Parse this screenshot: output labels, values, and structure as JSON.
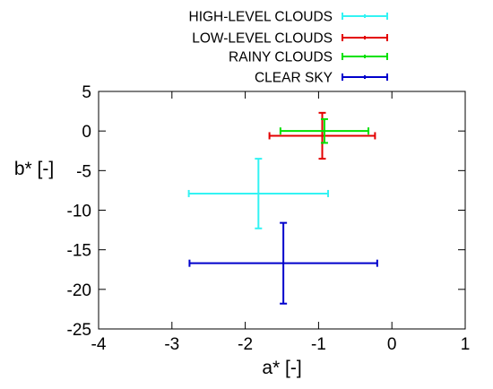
{
  "chart_data": {
    "type": "scatter",
    "title": "",
    "xlabel": "a* [-]",
    "ylabel": "b* [-]",
    "xlim": [
      -4,
      1
    ],
    "ylim": [
      -25,
      5
    ],
    "xticks": [
      -4,
      -3,
      -2,
      -1,
      0,
      1
    ],
    "yticks": [
      5,
      0,
      -5,
      -10,
      -15,
      -20,
      -25
    ],
    "grid": false,
    "legend_position": "top",
    "series": [
      {
        "name": "HIGH-LEVEL CLOUDS",
        "color": "#33f3f3",
        "x": -1.82,
        "y": -7.9,
        "x_err": 0.95,
        "y_err": 4.4
      },
      {
        "name": "LOW-LEVEL CLOUDS",
        "color": "#e30000",
        "x": -0.95,
        "y": -0.6,
        "x_err": 0.72,
        "y_err": 2.9
      },
      {
        "name": "RAINY CLOUDS",
        "color": "#00e100",
        "x": -0.92,
        "y": 0.0,
        "x_err": 0.6,
        "y_err": 1.5
      },
      {
        "name": "CLEAR SKY",
        "color": "#0000cc",
        "x": -1.48,
        "y": -16.7,
        "x_err": 1.28,
        "y_err": 5.1
      }
    ]
  }
}
